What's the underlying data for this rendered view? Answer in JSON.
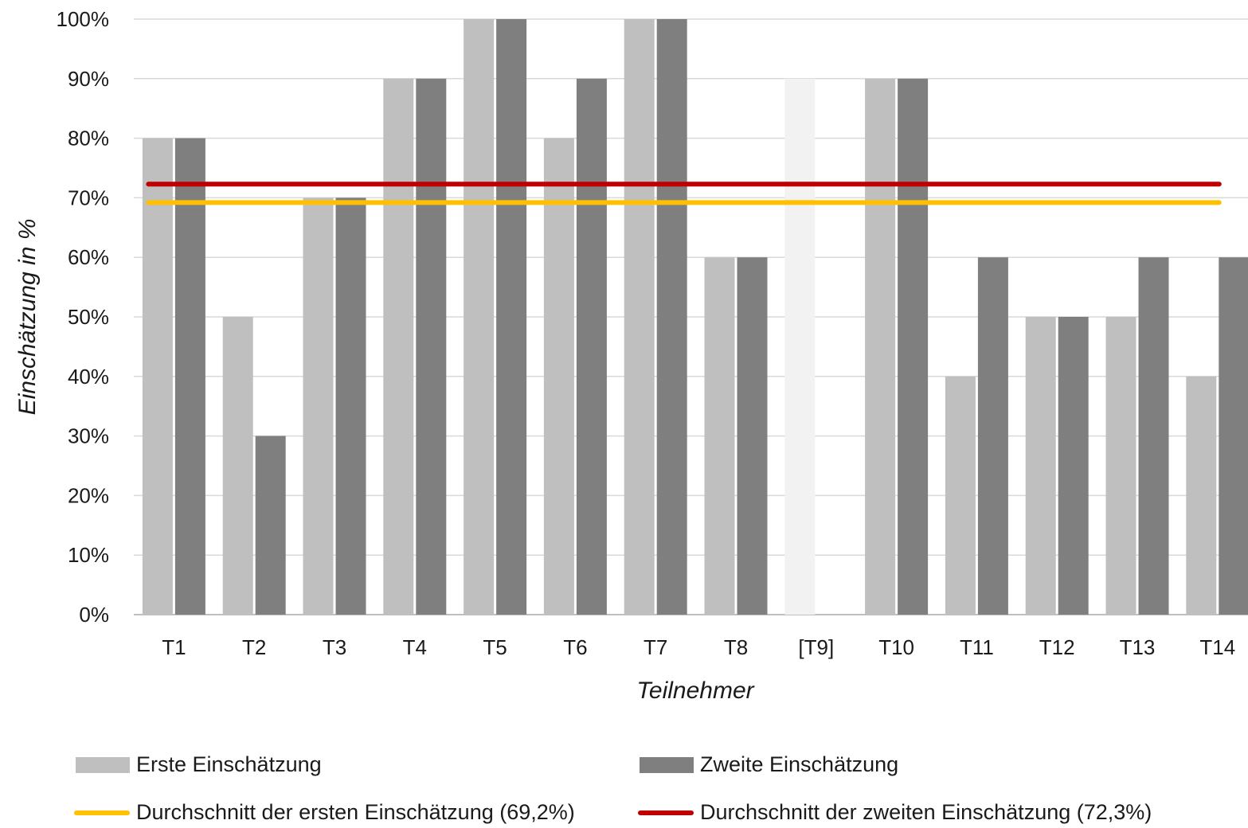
{
  "chart_data": {
    "type": "bar",
    "categories": [
      "T1",
      "T2",
      "T3",
      "T4",
      "T5",
      "T6",
      "T7",
      "T8",
      "[T9]",
      "T10",
      "T11",
      "T12",
      "T13",
      "T14"
    ],
    "series": [
      {
        "name": "Erste Einschätzung",
        "values": [
          80,
          50,
          70,
          90,
          100,
          80,
          100,
          60,
          90,
          90,
          40,
          50,
          50,
          40
        ],
        "color": "#bfbfbf",
        "highlight_color": "#f2f2f2"
      },
      {
        "name": "Zweite Einschätzung",
        "values": [
          80,
          30,
          70,
          90,
          100,
          90,
          100,
          60,
          null,
          90,
          60,
          50,
          60,
          60
        ],
        "color": "#7f7f7f"
      }
    ],
    "reference_lines": [
      {
        "name": "Durchschnitt der ersten Einschätzung (69,2%)",
        "value": 69.2,
        "color": "#ffc000"
      },
      {
        "name": "Durchschnitt der zweiten Einschätzung (72,3%)",
        "value": 72.3,
        "color": "#c00000"
      }
    ],
    "xlabel": "Teilnehmer",
    "ylabel": "Einschätzung in %",
    "ylim": [
      0,
      100
    ],
    "yticks": [
      "0%",
      "10%",
      "20%",
      "30%",
      "40%",
      "50%",
      "60%",
      "70%",
      "80%",
      "90%",
      "100%"
    ],
    "grid": true,
    "legend_position": "bottom"
  }
}
